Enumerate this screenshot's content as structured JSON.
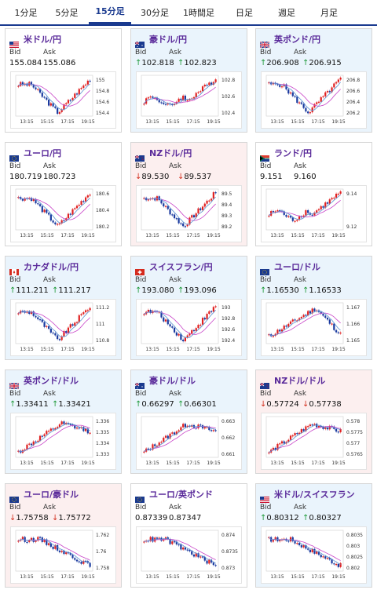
{
  "tabs": [
    {
      "label": "1分足",
      "active": false
    },
    {
      "label": "5分足",
      "active": false
    },
    {
      "label": "15分足",
      "active": true
    },
    {
      "label": "30分足",
      "active": false
    },
    {
      "label": "1時間足",
      "active": false
    },
    {
      "label": "日足",
      "active": false
    },
    {
      "label": "週足",
      "active": false
    },
    {
      "label": "月足",
      "active": false
    }
  ],
  "labels": {
    "bid": "Bid",
    "ask": "Ask"
  },
  "colors": {
    "up_card": "#eaf4fc",
    "down_card": "#fcefef",
    "bull_candle": "#e02020",
    "bear_candle": "#1a3a9f",
    "ma_line": "#c844c8",
    "ma_line2": "#5a8fd0",
    "up_arrow": "#1f9a3a",
    "down_arrow": "#d4301f"
  },
  "x_ticks": [
    "13:15",
    "15:15",
    "17:15",
    "19:15"
  ],
  "cards": [
    {
      "name": "米ドル/円",
      "flag": "us-flag-icon",
      "trend": "none",
      "bid": "155.084",
      "ask": "155.086",
      "y_ticks": [
        "155",
        "154.8",
        "154.6",
        "154.4"
      ],
      "pattern": "dipup"
    },
    {
      "name": "豪ドル/円",
      "flag": "au-flag-icon",
      "trend": "up",
      "bid": "102.818",
      "ask": "102.823",
      "y_ticks": [
        "102.8",
        "102.6",
        "102.4"
      ],
      "pattern": "flatup"
    },
    {
      "name": "英ポンド/円",
      "flag": "uk-flag-icon",
      "trend": "up",
      "bid": "206.908",
      "ask": "206.915",
      "y_ticks": [
        "206.8",
        "206.6",
        "206.4",
        "206.2"
      ],
      "pattern": "dipup"
    },
    {
      "name": "ユーロ/円",
      "flag": "eu-flag-icon",
      "trend": "none",
      "bid": "180.719",
      "ask": "180.723",
      "y_ticks": [
        "180.6",
        "180.4",
        "180.2"
      ],
      "pattern": "dipup"
    },
    {
      "name": "NZドル/円",
      "flag": "nz-flag-icon",
      "trend": "down",
      "bid": "89.530",
      "ask": "89.537",
      "y_ticks": [
        "89.5",
        "89.4",
        "89.3",
        "89.2"
      ],
      "pattern": "dipup"
    },
    {
      "name": "ランド/円",
      "flag": "za-flag-icon",
      "trend": "none",
      "bid": "9.151",
      "ask": "9.160",
      "y_ticks": [
        "9.14",
        "9.12"
      ],
      "pattern": "flatup"
    },
    {
      "name": "カナダドル/円",
      "flag": "ca-flag-icon",
      "trend": "up",
      "bid": "111.211",
      "ask": "111.217",
      "y_ticks": [
        "111.2",
        "111",
        "110.8"
      ],
      "pattern": "dipup"
    },
    {
      "name": "スイスフラン/円",
      "flag": "ch-flag-icon",
      "trend": "up",
      "bid": "193.080",
      "ask": "193.096",
      "y_ticks": [
        "193",
        "192.8",
        "192.6",
        "192.4"
      ],
      "pattern": "dipup"
    },
    {
      "name": "ユーロ/ドル",
      "flag": "eu-flag-icon",
      "trend": "up",
      "bid": "1.16530",
      "ask": "1.16533",
      "y_ticks": [
        "1.167",
        "1.166",
        "1.165"
      ],
      "pattern": "humpdown"
    },
    {
      "name": "英ポンド/ドル",
      "flag": "uk-flag-icon",
      "trend": "up",
      "bid": "1.33411",
      "ask": "1.33421",
      "y_ticks": [
        "1.336",
        "1.335",
        "1.334",
        "1.333"
      ],
      "pattern": "upflat"
    },
    {
      "name": "豪ドル/ドル",
      "flag": "au-flag-icon",
      "trend": "up",
      "bid": "0.66297",
      "ask": "0.66301",
      "y_ticks": [
        "0.663",
        "0.662",
        "0.661"
      ],
      "pattern": "upflat"
    },
    {
      "name": "NZドル/ドル",
      "flag": "nz-flag-icon",
      "trend": "down",
      "bid": "0.57724",
      "ask": "0.57738",
      "y_ticks": [
        "0.578",
        "0.5775",
        "0.577",
        "0.5765"
      ],
      "pattern": "upflat"
    },
    {
      "name": "ユーロ/豪ドル",
      "flag": "eu-flag-icon",
      "trend": "down",
      "bid": "1.75758",
      "ask": "1.75772",
      "y_ticks": [
        "1.762",
        "1.76",
        "1.758"
      ],
      "pattern": "down"
    },
    {
      "name": "ユーロ/英ポンド",
      "flag": "eu-flag-icon",
      "trend": "none",
      "bid": "0.87339",
      "ask": "0.87347",
      "y_ticks": [
        "0.874",
        "0.8735",
        "0.873"
      ],
      "pattern": "down"
    },
    {
      "name": "米ドル/スイスフラン",
      "flag": "us-flag-icon",
      "trend": "up",
      "bid": "0.80312",
      "ask": "0.80327",
      "y_ticks": [
        "0.8035",
        "0.803",
        "0.8025",
        "0.802"
      ],
      "pattern": "down"
    }
  ]
}
